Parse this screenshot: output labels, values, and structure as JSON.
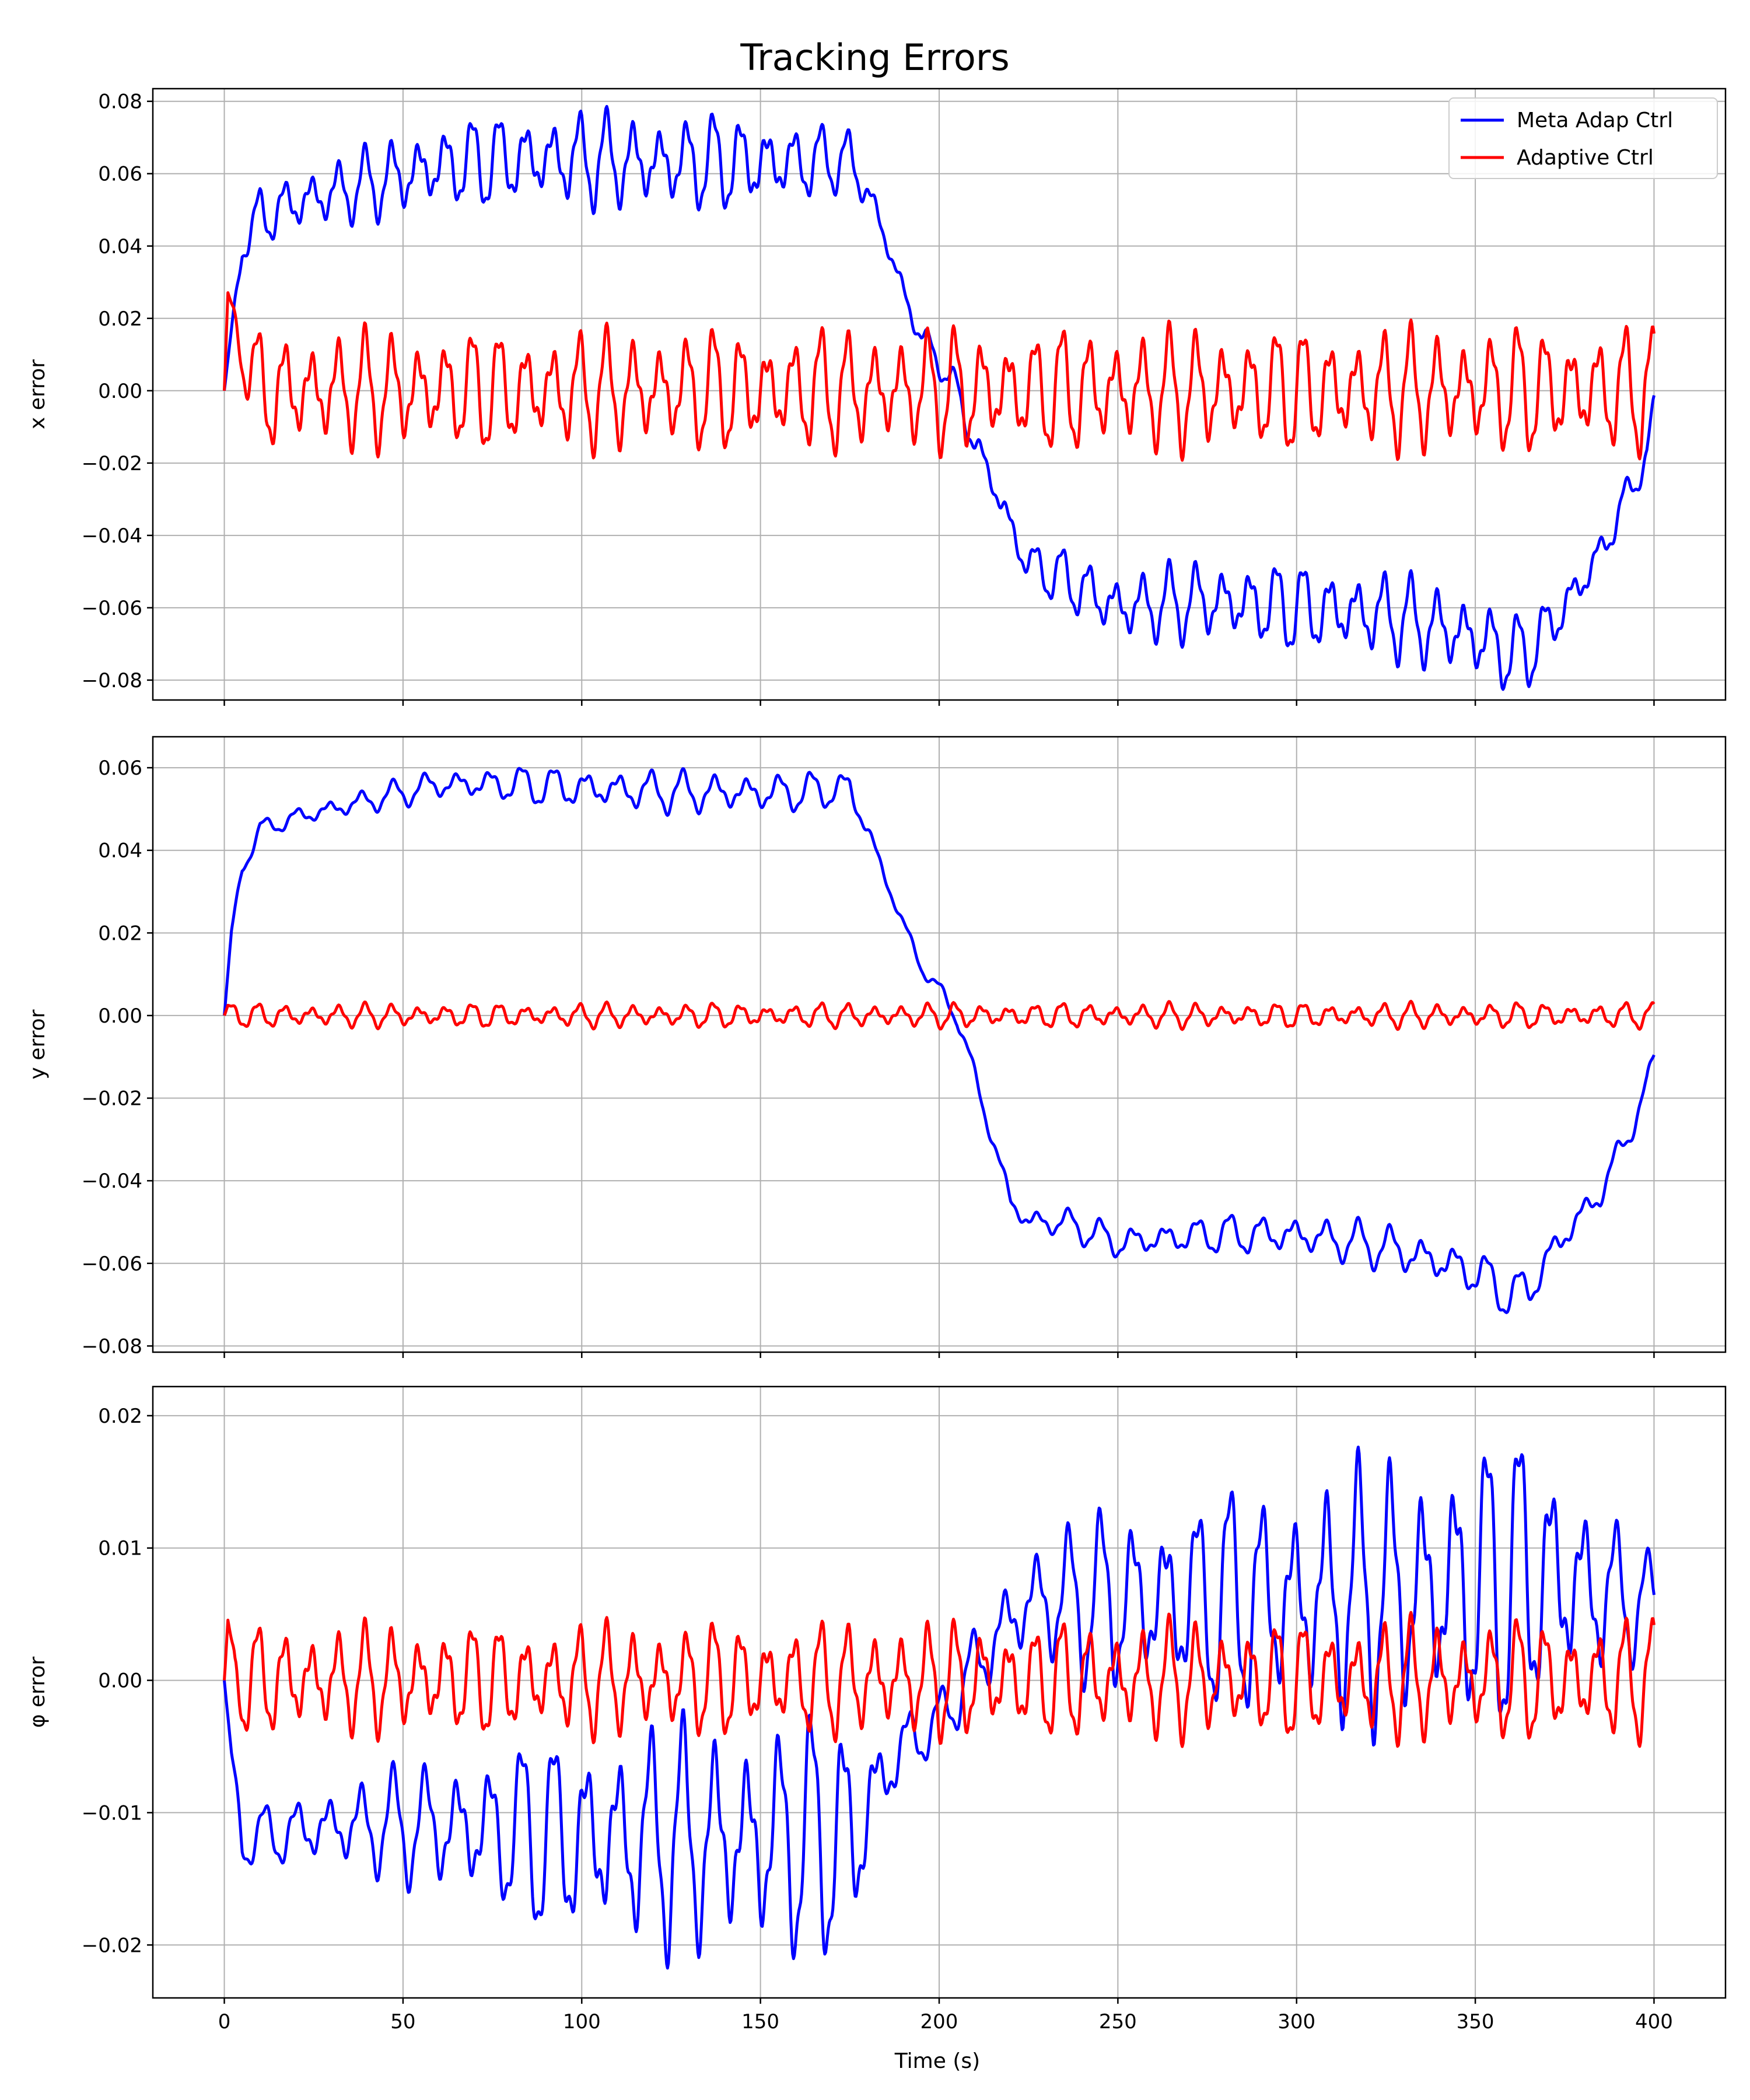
{
  "figure": {
    "title": "Tracking Errors",
    "xlabel": "Time (s)",
    "xticks": [
      0,
      50,
      100,
      150,
      200,
      250,
      300,
      350,
      400
    ],
    "xlim": [
      -20,
      420
    ]
  },
  "legend": {
    "placement": "top-right",
    "entries": [
      {
        "label": "Meta Adap Ctrl",
        "color": "#0000ff"
      },
      {
        "label": "Adaptive Ctrl",
        "color": "#ff0000"
      }
    ]
  },
  "chart_data": [
    {
      "type": "line",
      "ylabel": "x error",
      "ylim": [
        -0.0855,
        0.0835
      ],
      "yticks": [
        -0.08,
        -0.06,
        -0.04,
        -0.02,
        0.0,
        0.02,
        0.04,
        0.06,
        0.08
      ],
      "ytick_labels": [
        "−0.08",
        "−0.06",
        "−0.04",
        "−0.02",
        "0.00",
        "0.02",
        "0.04",
        "0.06",
        "0.08"
      ],
      "grid": true,
      "series": [
        {
          "name": "Meta Adap Ctrl",
          "color": "#0000ff",
          "envelope": {
            "x": [
              0,
              5,
              10,
              20,
              40,
              60,
              80,
              100,
              120,
              140,
              160,
              175,
              180,
              185,
              190,
              195,
              200,
              205,
              210,
              215,
              220,
              225,
              235,
              250,
              275,
              300,
              325,
              350,
              360,
              365,
              375,
              385,
              392,
              398,
              400
            ],
            "y": [
              0.0,
              0.04,
              0.048,
              0.052,
              0.057,
              0.062,
              0.064,
              0.064,
              0.063,
              0.063,
              0.063,
              0.064,
              0.055,
              0.042,
              0.027,
              0.015,
              0.008,
              0.0,
              -0.015,
              -0.025,
              -0.038,
              -0.048,
              -0.052,
              -0.06,
              -0.058,
              -0.06,
              -0.062,
              -0.068,
              -0.073,
              -0.072,
              -0.06,
              -0.045,
              -0.03,
              -0.018,
              -0.005
            ]
          },
          "oscillation_amplitude": {
            "x": [
              0,
              10,
              40,
              60,
              100,
              150,
              175,
              185,
              200,
              220,
              250,
              300,
              350,
              365,
              385,
              400
            ],
            "values": [
              0.0,
              0.008,
              0.01,
              0.012,
              0.013,
              0.013,
              0.008,
              0.004,
              0.004,
              0.006,
              0.01,
              0.012,
              0.012,
              0.01,
              0.006,
              0.004
            ]
          },
          "oscillation_period": 7.5
        },
        {
          "name": "Adaptive Ctrl",
          "color": "#ff0000",
          "envelope": {
            "x": [
              0,
              1,
              3,
              6,
              10,
              400
            ],
            "y": [
              0.0,
              0.026,
              0.018,
              0.008,
              0.0,
              0.0
            ]
          },
          "oscillation_amplitude": {
            "x": [
              0,
              10,
              400
            ],
            "values": [
              0.0,
              0.016,
              0.017
            ]
          },
          "oscillation_period": 7.5
        }
      ]
    },
    {
      "type": "line",
      "ylabel": "y error",
      "ylim": [
        -0.0815,
        0.0675
      ],
      "yticks": [
        -0.08,
        -0.06,
        -0.04,
        -0.02,
        0.0,
        0.02,
        0.04,
        0.06
      ],
      "ytick_labels": [
        "−0.08",
        "−0.06",
        "−0.04",
        "−0.02",
        "0.00",
        "0.02",
        "0.04",
        "0.06"
      ],
      "grid": true,
      "series": [
        {
          "name": "Meta Adap Ctrl",
          "color": "#0000ff",
          "envelope": {
            "x": [
              0,
              2,
              5,
              10,
              20,
              40,
              60,
              80,
              100,
              130,
              160,
              175,
              180,
              185,
              190,
              195,
              200,
              205,
              210,
              215,
              220,
              225,
              235,
              250,
              275,
              300,
              325,
              350,
              360,
              365,
              375,
              385,
              392,
              398,
              400
            ],
            "y": [
              0.0,
              0.02,
              0.036,
              0.045,
              0.048,
              0.052,
              0.056,
              0.056,
              0.055,
              0.054,
              0.054,
              0.055,
              0.045,
              0.033,
              0.022,
              0.012,
              0.006,
              0.0,
              -0.015,
              -0.03,
              -0.045,
              -0.05,
              -0.05,
              -0.055,
              -0.053,
              -0.053,
              -0.056,
              -0.062,
              -0.068,
              -0.066,
              -0.053,
              -0.043,
              -0.03,
              -0.018,
              -0.01
            ]
          },
          "oscillation_amplitude": {
            "x": [
              0,
              5,
              40,
              100,
              150,
              175,
              185,
              200,
              220,
              250,
              300,
              350,
              370,
              400
            ],
            "values": [
              0.0,
              0.002,
              0.003,
              0.005,
              0.005,
              0.004,
              0.002,
              0.002,
              0.003,
              0.004,
              0.005,
              0.006,
              0.005,
              0.003
            ]
          },
          "oscillation_period": 9
        },
        {
          "name": "Adaptive Ctrl",
          "color": "#ff0000",
          "envelope": {
            "x": [
              0,
              1,
              4,
              400
            ],
            "y": [
              0.0,
              0.002,
              0.0,
              0.0
            ]
          },
          "oscillation_amplitude": {
            "x": [
              0,
              4,
              400
            ],
            "values": [
              0.0,
              0.0028,
              0.003
            ]
          },
          "oscillation_period": 7.5
        }
      ]
    },
    {
      "type": "line",
      "ylabel": "φ error",
      "ylim": [
        -0.024,
        0.0222
      ],
      "yticks": [
        -0.02,
        -0.01,
        0.0,
        0.01,
        0.02
      ],
      "ytick_labels": [
        "−0.02",
        "−0.01",
        "0.00",
        "0.01",
        "0.02"
      ],
      "grid": true,
      "series": [
        {
          "name": "Meta Adap Ctrl",
          "color": "#0000ff",
          "envelope": {
            "x": [
              0,
              2,
              5,
              30,
              60,
              100,
              150,
              175,
              180,
              185,
              190,
              195,
              200,
              205,
              210,
              215,
              225,
              250,
              300,
              350,
              365,
              380,
              395,
              400
            ],
            "y": [
              0.0,
              -0.006,
              -0.012,
              -0.011,
              -0.011,
              -0.012,
              -0.012,
              -0.012,
              -0.01,
              -0.007,
              -0.005,
              -0.004,
              -0.003,
              -0.001,
              0.001,
              0.003,
              0.006,
              0.006,
              0.006,
              0.007,
              0.008,
              0.007,
              0.006,
              0.006
            ]
          },
          "oscillation_amplitude": {
            "x": [
              0,
              5,
              30,
              60,
              100,
              150,
              175,
              185,
              200,
              220,
              250,
              300,
              350,
              365,
              385,
              400
            ],
            "values": [
              0.0,
              0.002,
              0.003,
              0.005,
              0.008,
              0.009,
              0.009,
              0.004,
              0.002,
              0.004,
              0.007,
              0.009,
              0.011,
              0.011,
              0.007,
              0.003
            ]
          },
          "oscillation_period": 9
        },
        {
          "name": "Adaptive Ctrl",
          "color": "#ff0000",
          "envelope": {
            "x": [
              0,
              1,
              3,
              400
            ],
            "y": [
              0.0,
              0.004,
              0.0,
              0.0
            ]
          },
          "oscillation_amplitude": {
            "x": [
              0,
              5,
              400
            ],
            "values": [
              0.0,
              0.004,
              0.0045
            ]
          },
          "oscillation_period": 7.5
        }
      ]
    }
  ]
}
